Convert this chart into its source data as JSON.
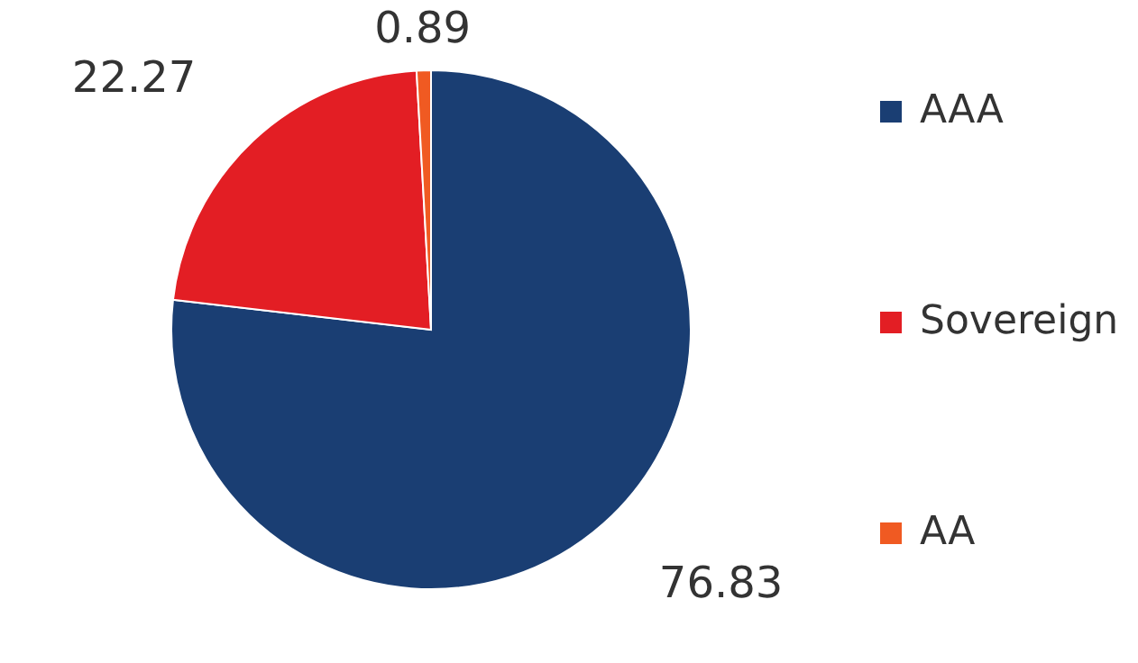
{
  "chart_data": {
    "type": "pie",
    "categories": [
      "AAA",
      "Sovereign",
      "AA"
    ],
    "values": [
      76.83,
      22.27,
      0.89
    ],
    "colors": [
      "#1a3e73",
      "#e31e24",
      "#f05a22"
    ],
    "data_labels": true,
    "legend": "right"
  }
}
